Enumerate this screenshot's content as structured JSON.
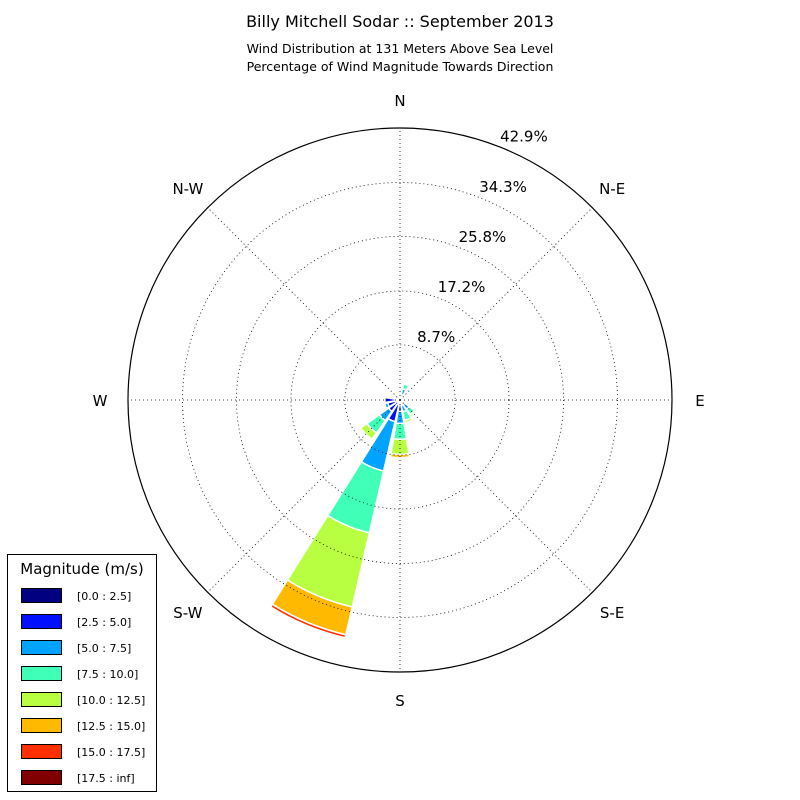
{
  "chart_data": {
    "type": "windrose",
    "title": "Billy Mitchell Sodar :: September 2013",
    "subtitle_lines": [
      "Wind Distribution at 131 Meters Above Sea Level",
      "Percentage of Wind Magnitude Towards Direction"
    ],
    "radial_ticks": [
      "8.7%",
      "17.2%",
      "25.8%",
      "34.3%",
      "42.9%"
    ],
    "radial_tick_values": [
      8.7,
      17.2,
      25.8,
      34.3,
      42.9
    ],
    "r_max": 42.9,
    "direction_labels": [
      {
        "label": "N",
        "angle": 0
      },
      {
        "label": "N-E",
        "angle": 45
      },
      {
        "label": "E",
        "angle": 90
      },
      {
        "label": "S-E",
        "angle": 135
      },
      {
        "label": "S",
        "angle": 180
      },
      {
        "label": "S-W",
        "angle": 225
      },
      {
        "label": "W",
        "angle": 270
      },
      {
        "label": "N-W",
        "angle": 315
      }
    ],
    "legend_title": "Magnitude (m/s)",
    "bins": [
      {
        "label": "[0.0 : 2.5]",
        "color": "#000080"
      },
      {
        "label": "[2.5 : 5.0]",
        "color": "#0010ff"
      },
      {
        "label": "[5.0 : 7.5]",
        "color": "#00a4ff"
      },
      {
        "label": "[7.5 : 10.0]",
        "color": "#40ffb7"
      },
      {
        "label": "[10.0 : 12.5]",
        "color": "#b7ff40"
      },
      {
        "label": "[12.5 : 15.0]",
        "color": "#ffb900"
      },
      {
        "label": "[15.0 : 17.5]",
        "color": "#ff3000"
      },
      {
        "label": "[17.5 : inf]",
        "color": "#800000"
      }
    ],
    "sectors": [
      {
        "direction": 0,
        "values": [
          0.2,
          0.2,
          0.2,
          0.1,
          0,
          0,
          0,
          0
        ]
      },
      {
        "direction": 22.5,
        "values": [
          0.3,
          0.6,
          0.9,
          0.8,
          0.2,
          0,
          0,
          0
        ]
      },
      {
        "direction": 45,
        "values": [
          0.1,
          0.1,
          0.1,
          0,
          0,
          0,
          0,
          0
        ]
      },
      {
        "direction": 67.5,
        "values": [
          0.2,
          0.3,
          0.2,
          0,
          0,
          0,
          0,
          0
        ]
      },
      {
        "direction": 90,
        "values": [
          0.3,
          0.6,
          0.2,
          0,
          0,
          0,
          0,
          0
        ]
      },
      {
        "direction": 112.5,
        "values": [
          0.4,
          0.4,
          0.2,
          0,
          0,
          0,
          0,
          0
        ]
      },
      {
        "direction": 135,
        "values": [
          0.3,
          0.5,
          1.0,
          1.0,
          0.3,
          0,
          0,
          0
        ]
      },
      {
        "direction": 157.5,
        "values": [
          0.3,
          0.6,
          1.0,
          1.4,
          0.4,
          0,
          0,
          0
        ]
      },
      {
        "direction": 180,
        "values": [
          0.4,
          1.4,
          1.9,
          2.5,
          2.4,
          0.5,
          0,
          0
        ]
      },
      {
        "direction": 202.5,
        "values": [
          0.5,
          3.0,
          8.0,
          10.0,
          12.0,
          4.5,
          0.5,
          0.1
        ]
      },
      {
        "direction": 225,
        "values": [
          0.5,
          1.7,
          1.8,
          2.4,
          1.2,
          0,
          0,
          0
        ]
      },
      {
        "direction": 247.5,
        "values": [
          0.4,
          1.6,
          0.5,
          0.1,
          0,
          0,
          0,
          0
        ]
      },
      {
        "direction": 270,
        "values": [
          0.4,
          2.0,
          0.1,
          0,
          0,
          0,
          0,
          0
        ]
      },
      {
        "direction": 292.5,
        "values": [
          0.3,
          0.4,
          0.1,
          0,
          0,
          0,
          0,
          0
        ]
      },
      {
        "direction": 315,
        "values": [
          0.1,
          0.1,
          0,
          0,
          0,
          0,
          0,
          0
        ]
      },
      {
        "direction": 337.5,
        "values": [
          0.2,
          0.2,
          0.1,
          0,
          0,
          0,
          0,
          0
        ]
      }
    ]
  }
}
